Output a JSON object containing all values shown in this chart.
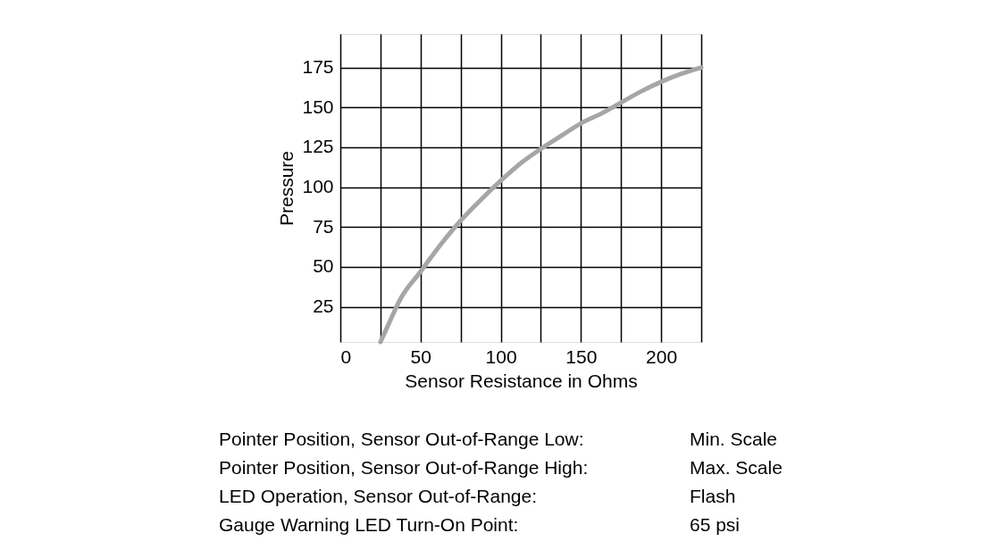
{
  "chart_data": {
    "type": "line",
    "xlabel": "Sensor Resistance in Ohms",
    "ylabel": "Pressure",
    "x": [
      25,
      30,
      37.5,
      50,
      62.5,
      75,
      87.5,
      100,
      112.5,
      125,
      137.5,
      150,
      162.5,
      175,
      187.5,
      200,
      212.5,
      225
    ],
    "series": [
      {
        "color": "#a6a6a6",
        "values": [
          3,
          14,
          30,
          47,
          64,
          79,
          92,
          104,
          115,
          124,
          132,
          140,
          146,
          153,
          160,
          166,
          171,
          175
        ]
      }
    ],
    "xlim": [
      0,
      225
    ],
    "ylim": [
      3,
      196
    ],
    "xticks": [
      0,
      {
        "value": 25,
        "label": null
      },
      50,
      {
        "value": 75,
        "label": null
      },
      100,
      {
        "value": 125,
        "label": null
      },
      150,
      {
        "value": 175,
        "label": null
      },
      200,
      {
        "value": 225,
        "label": null
      }
    ],
    "yticks": [
      25,
      50,
      75,
      100,
      125,
      150,
      175
    ],
    "grid": true,
    "marker": "none",
    "line_style": "solid",
    "annotations": [
      "Pointer Position, Sensor Out-of-Range Low:",
      "Min. Scale",
      "Pointer Position, Sensor Out-of-Range High:",
      "Max. Scale",
      "LED Operation, Sensor Out-of-Range:",
      "Flash",
      "Gauge Warning LED Turn-On Point:",
      "65 psi"
    ]
  }
}
